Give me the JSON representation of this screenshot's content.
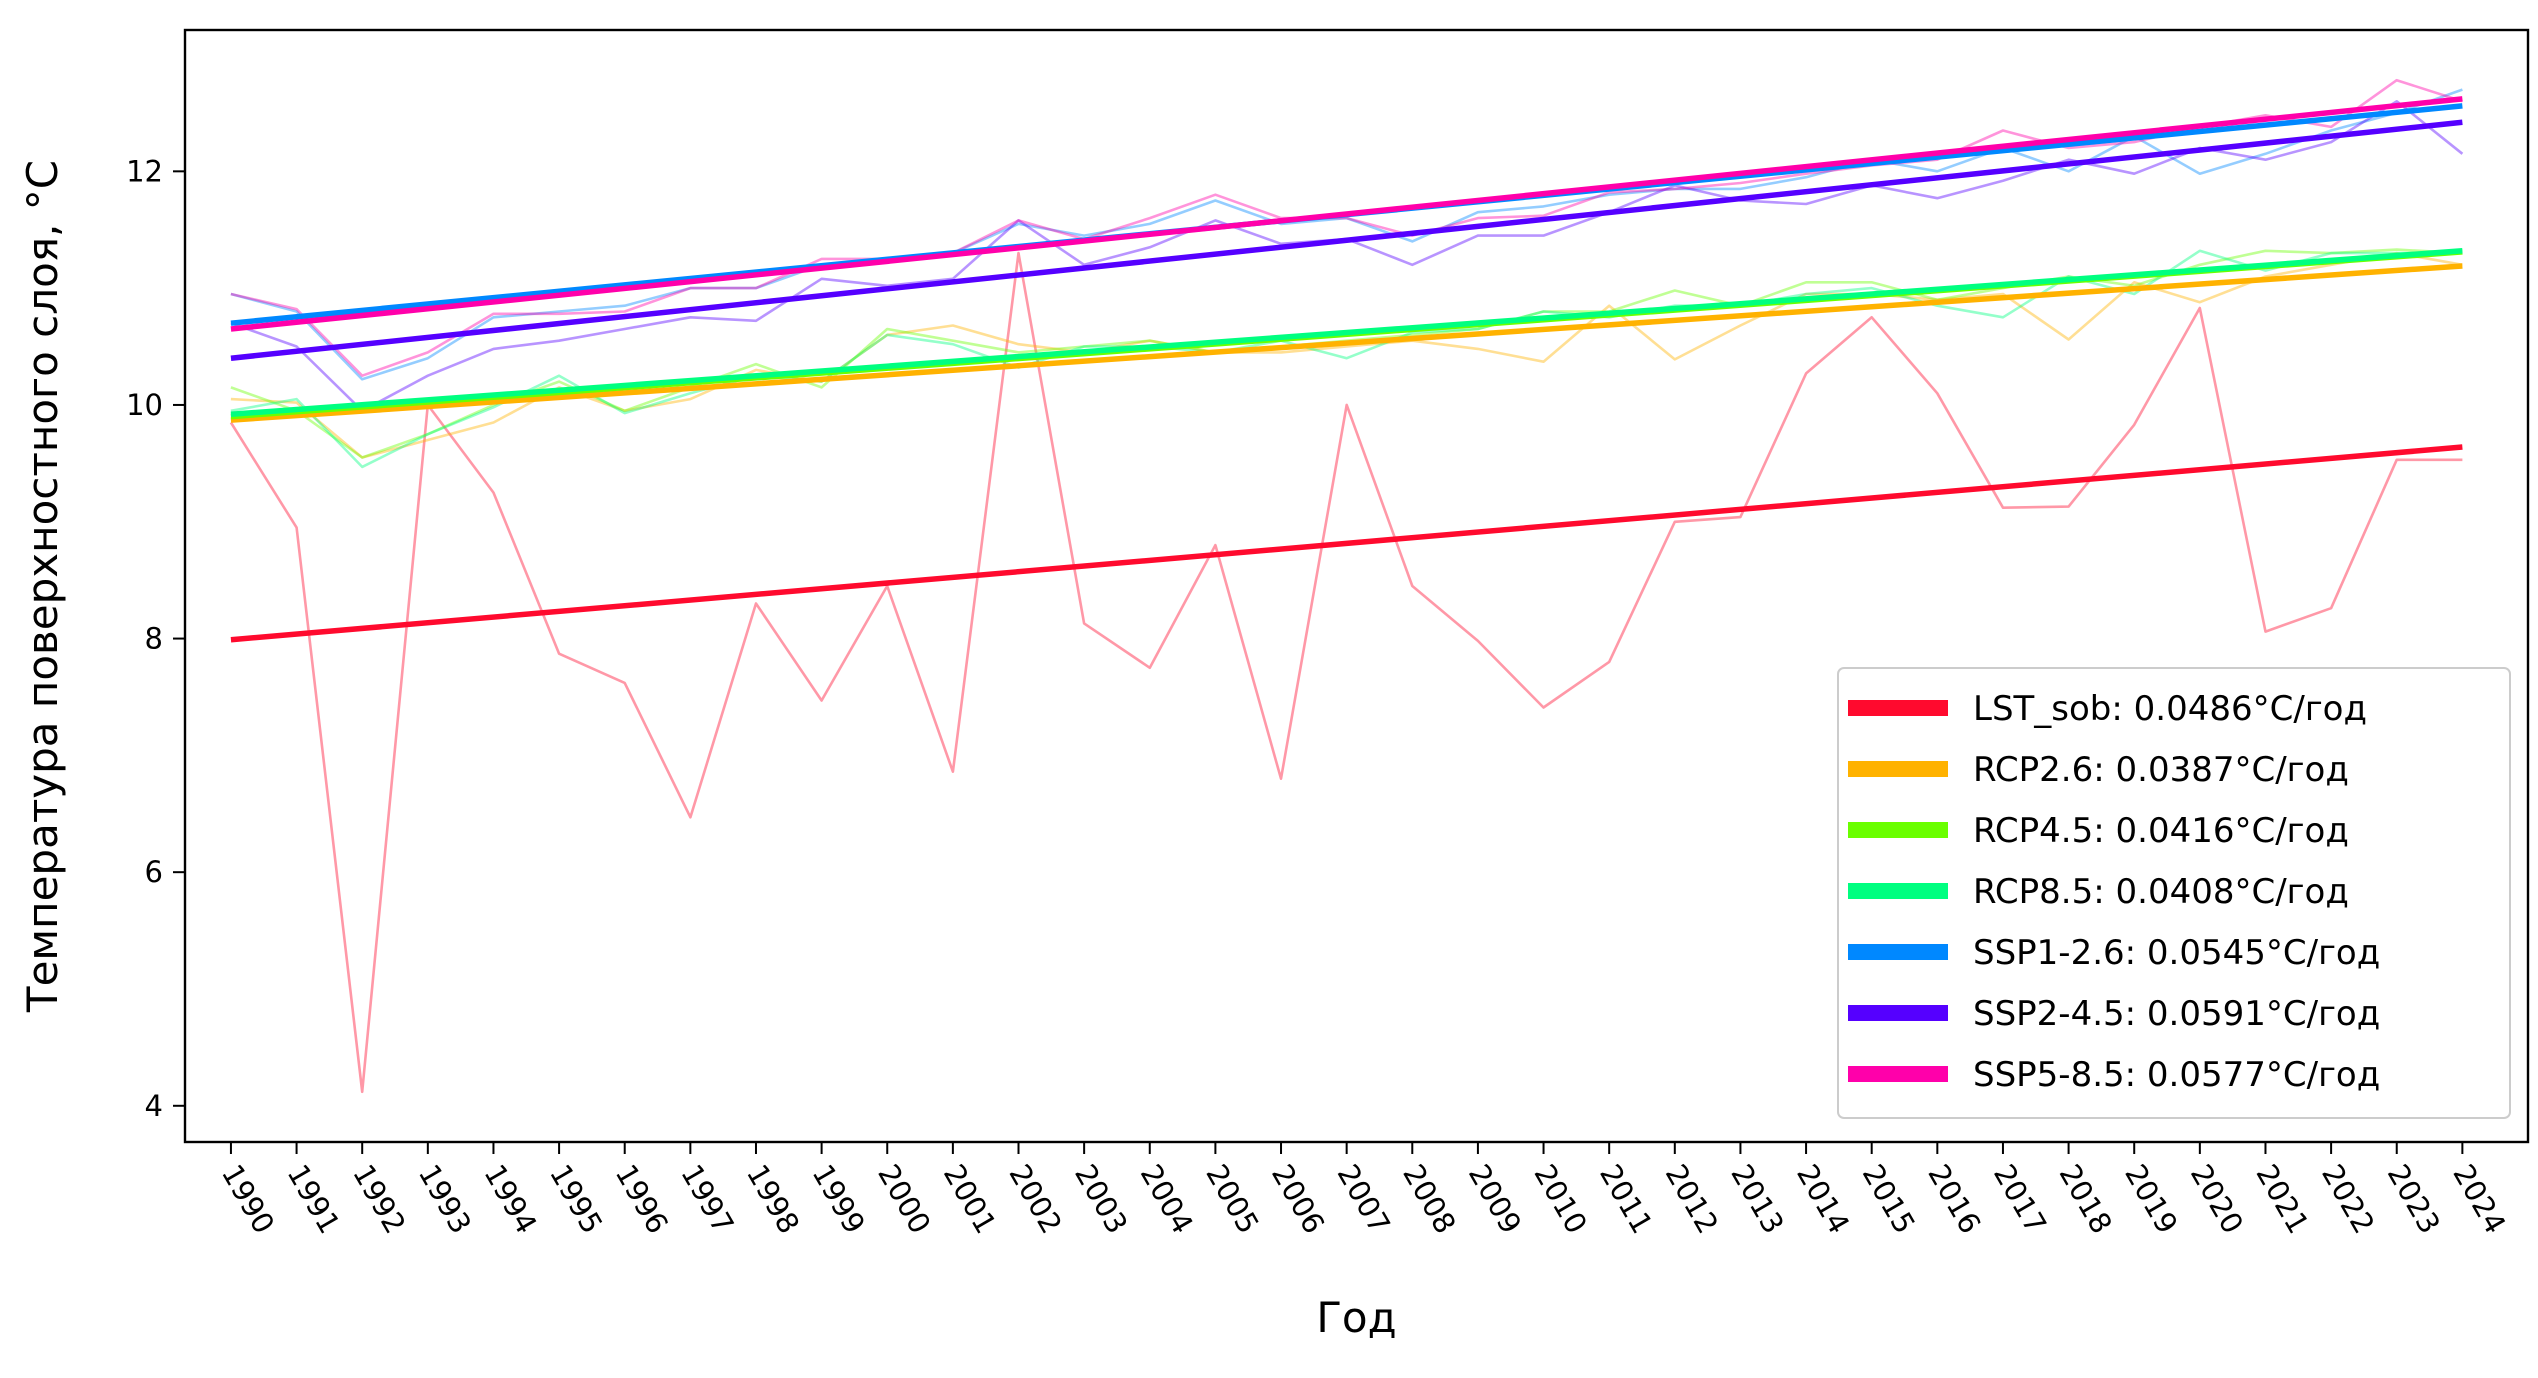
{
  "chart_data": {
    "type": "line",
    "xlabel": "Год",
    "ylabel": "Температура поверхностного слоя, °C",
    "x": [
      1990,
      1991,
      1992,
      1993,
      1994,
      1995,
      1996,
      1997,
      1998,
      1999,
      2000,
      2001,
      2002,
      2003,
      2004,
      2005,
      2006,
      2007,
      2008,
      2009,
      2010,
      2011,
      2012,
      2013,
      2014,
      2015,
      2016,
      2017,
      2018,
      2019,
      2020,
      2021,
      2022,
      2023,
      2024
    ],
    "xlim": [
      1989.3,
      2025.0
    ],
    "ylim": [
      3.69,
      13.21
    ],
    "yticks": [
      4,
      6,
      8,
      10,
      12
    ],
    "grid": false,
    "legend_position": "lower-right",
    "series": [
      {
        "name": "LST_sob",
        "legend": "LST_sob: 0.0486°C/год",
        "color": "#ff0a2e",
        "values": [
          9.85,
          8.95,
          4.12,
          10.0,
          9.25,
          7.87,
          7.62,
          6.47,
          8.3,
          7.47,
          8.45,
          6.86,
          11.3,
          8.13,
          7.75,
          8.8,
          6.8,
          10.0,
          8.45,
          7.98,
          7.41,
          7.8,
          9.0,
          9.04,
          10.27,
          10.75,
          10.1,
          9.12,
          9.13,
          9.83,
          10.83,
          8.06,
          8.26,
          9.53,
          9.53
        ],
        "trend": [
          7.99,
          9.64
        ]
      },
      {
        "name": "RCP2.6",
        "legend": "RCP2.6: 0.0387°C/год",
        "color": "#ffb200",
        "values": [
          10.05,
          10.02,
          9.55,
          9.7,
          9.85,
          10.15,
          9.95,
          10.05,
          10.3,
          10.2,
          10.6,
          10.68,
          10.52,
          10.45,
          10.55,
          10.45,
          10.45,
          10.5,
          10.55,
          10.48,
          10.37,
          10.85,
          10.39,
          10.68,
          10.95,
          10.95,
          10.9,
          10.95,
          10.56,
          11.05,
          10.88,
          11.1,
          11.2,
          11.3,
          11.2
        ],
        "trend": [
          9.87,
          11.19
        ]
      },
      {
        "name": "RCP4.5",
        "legend": "RCP4.5: 0.0416°C/год",
        "color": "#6aff00",
        "values": [
          10.15,
          9.95,
          9.55,
          9.75,
          10.0,
          10.2,
          9.95,
          10.15,
          10.35,
          10.15,
          10.65,
          10.55,
          10.45,
          10.5,
          10.55,
          10.45,
          10.5,
          10.55,
          10.6,
          10.65,
          10.8,
          10.8,
          10.98,
          10.85,
          11.05,
          11.05,
          10.9,
          11.0,
          11.1,
          11.02,
          11.2,
          11.32,
          11.3,
          11.33,
          11.3
        ],
        "trend": [
          9.9,
          11.31
        ]
      },
      {
        "name": "RCP8.5",
        "legend": "RCP8.5: 0.0408°C/год",
        "color": "#00ff80",
        "values": [
          9.95,
          10.05,
          9.47,
          9.75,
          9.98,
          10.25,
          9.93,
          10.1,
          10.25,
          10.2,
          10.6,
          10.52,
          10.32,
          10.5,
          10.5,
          10.45,
          10.55,
          10.4,
          10.62,
          10.65,
          10.8,
          10.75,
          10.85,
          10.85,
          10.95,
          11.0,
          10.85,
          10.75,
          11.1,
          10.95,
          11.32,
          11.15,
          11.3,
          11.3,
          11.3
        ],
        "trend": [
          9.92,
          11.32
        ]
      },
      {
        "name": "SSP1-2.6",
        "legend": "SSP1-2.6: 0.0545°C/год",
        "color": "#0088ff",
        "values": [
          10.95,
          10.8,
          10.22,
          10.4,
          10.75,
          10.8,
          10.85,
          11.0,
          11.0,
          11.2,
          11.25,
          11.3,
          11.55,
          11.45,
          11.55,
          11.75,
          11.55,
          11.6,
          11.4,
          11.65,
          11.7,
          11.8,
          11.85,
          11.85,
          11.95,
          12.1,
          12.0,
          12.2,
          12.0,
          12.3,
          11.98,
          12.15,
          12.35,
          12.5,
          12.7
        ],
        "trend": [
          10.7,
          12.56
        ]
      },
      {
        "name": "SSP2-4.5",
        "legend": "SSP2-4.5: 0.0591°C/год",
        "color": "#5500ff",
        "values": [
          10.7,
          10.5,
          9.95,
          10.25,
          10.48,
          10.55,
          10.65,
          10.75,
          10.72,
          11.08,
          11.02,
          11.08,
          11.58,
          11.2,
          11.35,
          11.58,
          11.38,
          11.42,
          11.2,
          11.45,
          11.45,
          11.65,
          11.88,
          11.75,
          11.72,
          11.88,
          11.77,
          11.92,
          12.1,
          11.98,
          12.2,
          12.1,
          12.25,
          12.6,
          12.15
        ],
        "trend": [
          10.4,
          12.42
        ]
      },
      {
        "name": "SSP5-8.5",
        "legend": "SSP5-8.5: 0.0577°C/год",
        "color": "#ff00aa",
        "values": [
          10.95,
          10.82,
          10.25,
          10.45,
          10.78,
          10.78,
          10.8,
          11.0,
          11.0,
          11.25,
          11.25,
          11.3,
          11.58,
          11.42,
          11.6,
          11.8,
          11.6,
          11.6,
          11.45,
          11.6,
          11.62,
          11.82,
          11.85,
          11.9,
          11.98,
          12.05,
          12.1,
          12.35,
          12.2,
          12.25,
          12.38,
          12.48,
          12.38,
          12.78,
          12.6
        ],
        "trend": [
          10.65,
          12.62
        ]
      }
    ]
  }
}
